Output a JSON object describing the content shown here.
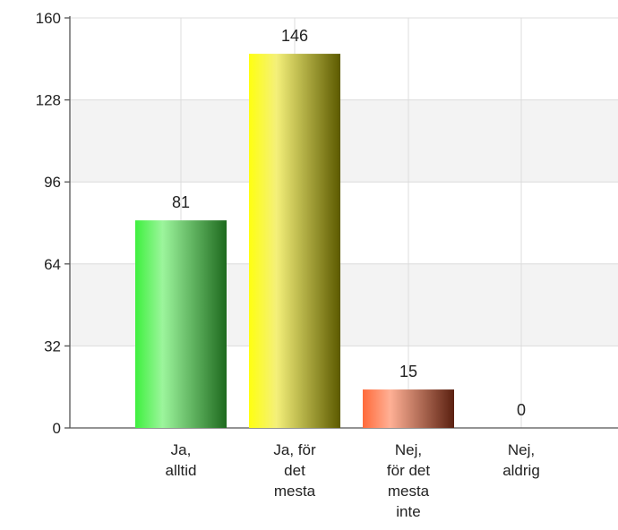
{
  "chart_data": {
    "type": "bar",
    "categories": [
      [
        "Ja,",
        "alltid"
      ],
      [
        "Ja, för",
        "det",
        "mesta"
      ],
      [
        "Nej,",
        "för det",
        "mesta",
        "inte"
      ],
      [
        "Nej,",
        "aldrig"
      ]
    ],
    "values": [
      81,
      146,
      15,
      0
    ],
    "value_labels": [
      "81",
      "146",
      "15",
      "0"
    ],
    "bar_colors": [
      [
        "#3ef03e",
        "#9cf59c",
        "#1e6a1e"
      ],
      [
        "#ffff10",
        "#f4f07a",
        "#5c5a00"
      ],
      [
        "#ff6a3a",
        "#ffb095",
        "#5a2010"
      ],
      [
        "#999999",
        "#cccccc",
        "#444444"
      ]
    ],
    "yticks": [
      "0",
      "32",
      "64",
      "96",
      "128",
      "160"
    ],
    "ylim": [
      0,
      160
    ],
    "title": "",
    "xlabel": "",
    "ylabel": "",
    "grid": true
  }
}
